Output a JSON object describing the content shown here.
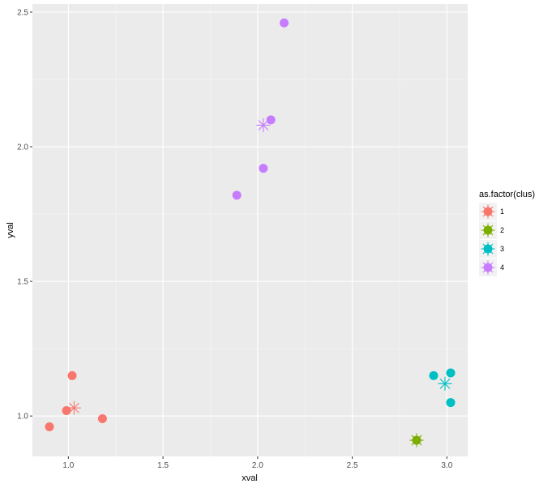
{
  "chart_data": {
    "type": "scatter",
    "xlabel": "xval",
    "ylabel": "yval",
    "xlim": [
      0.81,
      3.11
    ],
    "ylim": [
      0.85,
      2.53
    ],
    "x_ticks": [
      1.0,
      1.5,
      2.0,
      2.5,
      3.0
    ],
    "x_tick_labels": [
      "1.0",
      "1.5",
      "2.0",
      "2.5",
      "3.0"
    ],
    "y_ticks": [
      1.0,
      1.5,
      2.0,
      2.5
    ],
    "y_tick_labels": [
      "1.0",
      "1.5",
      "2.0",
      "2.5"
    ],
    "grid": true,
    "legend": {
      "title": "as.factor(clus)",
      "placement": "right",
      "entries": [
        "1",
        "2",
        "3",
        "4"
      ]
    },
    "series": [
      {
        "name": "1",
        "color": "#F8766D",
        "points": [
          [
            0.9,
            0.96
          ],
          [
            0.99,
            1.02
          ],
          [
            1.02,
            1.15
          ],
          [
            1.18,
            0.99
          ]
        ],
        "center": [
          1.03,
          1.03
        ]
      },
      {
        "name": "2",
        "color": "#7CAE00",
        "points": [
          [
            2.84,
            0.91
          ]
        ],
        "center": [
          2.84,
          0.91
        ]
      },
      {
        "name": "3",
        "color": "#00BFC4",
        "points": [
          [
            2.93,
            1.15
          ],
          [
            3.02,
            1.16
          ],
          [
            3.02,
            1.05
          ]
        ],
        "center": [
          2.99,
          1.12
        ]
      },
      {
        "name": "4",
        "color": "#C77CFF",
        "points": [
          [
            1.89,
            1.82
          ],
          [
            2.03,
            1.92
          ],
          [
            2.07,
            2.1
          ],
          [
            2.14,
            2.46
          ]
        ],
        "center": [
          2.03,
          2.08
        ]
      }
    ]
  },
  "colors": {
    "panel_background": "#EBEBEB",
    "grid_major": "#FFFFFF",
    "grid_minor": "#F5F5F5"
  }
}
